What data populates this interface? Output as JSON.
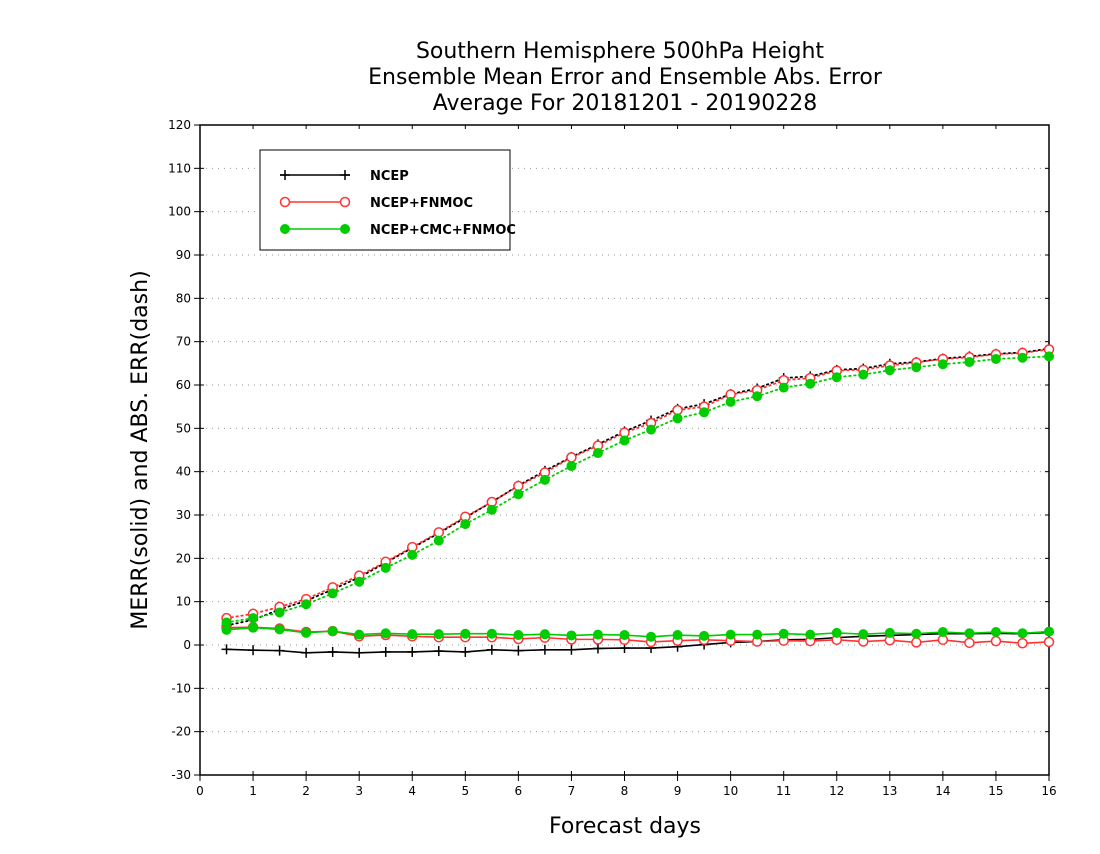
{
  "title_lines": [
    "Southern Hemisphere 500hPa Height",
    "Ensemble Mean Error and Ensemble Abs. Error",
    "Average For 20181201 - 20190228"
  ],
  "chart_data": {
    "type": "line",
    "title": "Southern Hemisphere 500hPa Height / Ensemble Mean Error and Ensemble Abs. Error / Average For 20181201 - 20190228",
    "xlabel": "Forecast days",
    "ylabel": "MERR(solid) and ABS. ERR(dash)",
    "xlim": [
      0,
      16
    ],
    "ylim": [
      -30,
      120
    ],
    "x_ticks": [
      0,
      1,
      2,
      3,
      4,
      5,
      6,
      7,
      8,
      9,
      10,
      11,
      12,
      13,
      14,
      15,
      16
    ],
    "y_ticks": [
      -30,
      -20,
      -10,
      0,
      10,
      20,
      30,
      40,
      50,
      60,
      70,
      80,
      90,
      100,
      110,
      120
    ],
    "grid": "horizontal dotted",
    "legend_position": "top-left",
    "x": [
      0.5,
      1,
      1.5,
      2,
      2.5,
      3,
      3.5,
      4,
      4.5,
      5,
      5.5,
      6,
      6.5,
      7,
      7.5,
      8,
      8.5,
      9,
      9.5,
      10,
      10.5,
      11,
      11.5,
      12,
      12.5,
      13,
      13.5,
      14,
      14.5,
      15,
      15.5,
      16
    ],
    "series": [
      {
        "name": "NCEP",
        "metric": "MERR",
        "style": "solid",
        "color": "#000000",
        "marker": "plus",
        "values": [
          -1.0,
          -1.2,
          -1.3,
          -1.8,
          -1.6,
          -1.8,
          -1.6,
          -1.6,
          -1.4,
          -1.6,
          -1.1,
          -1.3,
          -1.1,
          -1.1,
          -0.8,
          -0.7,
          -0.7,
          -0.4,
          0.1,
          0.6,
          0.8,
          1.2,
          1.3,
          1.7,
          2.0,
          2.2,
          2.4,
          2.6,
          2.6,
          2.7,
          2.6,
          2.9
        ]
      },
      {
        "name": "NCEP",
        "metric": "ABS. ERR",
        "style": "dotted",
        "color": "#000000",
        "marker": "plus",
        "values": [
          4.5,
          5.8,
          8.2,
          10.2,
          12.8,
          15.6,
          19.0,
          22.4,
          25.8,
          29.4,
          33.0,
          36.8,
          40.2,
          43.4,
          46.3,
          49.3,
          51.8,
          54.5,
          55.6,
          57.9,
          59.2,
          61.6,
          62.0,
          63.5,
          63.8,
          64.9,
          65.3,
          66.1,
          66.6,
          67.2,
          67.5,
          68.4
        ]
      },
      {
        "name": "NCEP+FNMOC",
        "metric": "MERR",
        "style": "solid",
        "color": "#ff3333",
        "marker": "open-circle",
        "values": [
          4.0,
          4.1,
          3.8,
          3.0,
          3.2,
          2.0,
          2.3,
          2.0,
          1.8,
          1.8,
          1.8,
          1.4,
          1.7,
          1.3,
          1.3,
          1.2,
          0.7,
          1.0,
          1.2,
          1.0,
          0.8,
          1.0,
          0.9,
          1.2,
          0.8,
          1.1,
          0.6,
          1.2,
          0.5,
          0.9,
          0.4,
          0.7
        ]
      },
      {
        "name": "NCEP+FNMOC",
        "metric": "ABS. ERR",
        "style": "dotted",
        "color": "#ff3333",
        "marker": "open-circle",
        "values": [
          6.2,
          7.2,
          8.8,
          10.6,
          13.3,
          16.0,
          19.2,
          22.6,
          26.0,
          29.6,
          33.0,
          36.7,
          39.8,
          43.3,
          46.0,
          49.0,
          51.2,
          54.2,
          55.0,
          57.8,
          58.8,
          61.1,
          61.6,
          63.3,
          63.5,
          64.5,
          65.2,
          66.0,
          66.4,
          67.1,
          67.4,
          68.2
        ]
      },
      {
        "name": "NCEP+CMC+FNMOC",
        "metric": "MERR",
        "style": "solid",
        "color": "#00cc00",
        "marker": "filled-circle",
        "values": [
          3.5,
          4.0,
          3.6,
          2.8,
          3.2,
          2.4,
          2.7,
          2.5,
          2.5,
          2.6,
          2.6,
          2.3,
          2.5,
          2.2,
          2.4,
          2.3,
          1.9,
          2.3,
          2.1,
          2.4,
          2.4,
          2.6,
          2.4,
          2.8,
          2.5,
          2.8,
          2.6,
          3.0,
          2.7,
          3.0,
          2.7,
          3.1
        ]
      },
      {
        "name": "NCEP+CMC+FNMOC",
        "metric": "ABS. ERR",
        "style": "dotted",
        "color": "#00cc00",
        "marker": "filled-circle",
        "values": [
          5.2,
          6.2,
          7.5,
          9.4,
          11.9,
          14.6,
          17.8,
          20.8,
          24.1,
          27.9,
          31.2,
          34.8,
          38.1,
          41.3,
          44.3,
          47.2,
          49.7,
          52.3,
          53.7,
          56.1,
          57.4,
          59.4,
          60.3,
          61.8,
          62.4,
          63.4,
          64.1,
          64.8,
          65.3,
          66.0,
          66.3,
          66.6
        ]
      }
    ],
    "legend": [
      {
        "label": "NCEP",
        "color": "#000000",
        "marker": "plus"
      },
      {
        "label": "NCEP+FNMOC",
        "color": "#ff3333",
        "marker": "open-circle"
      },
      {
        "label": "NCEP+CMC+FNMOC",
        "color": "#00cc00",
        "marker": "filled-circle"
      }
    ]
  }
}
